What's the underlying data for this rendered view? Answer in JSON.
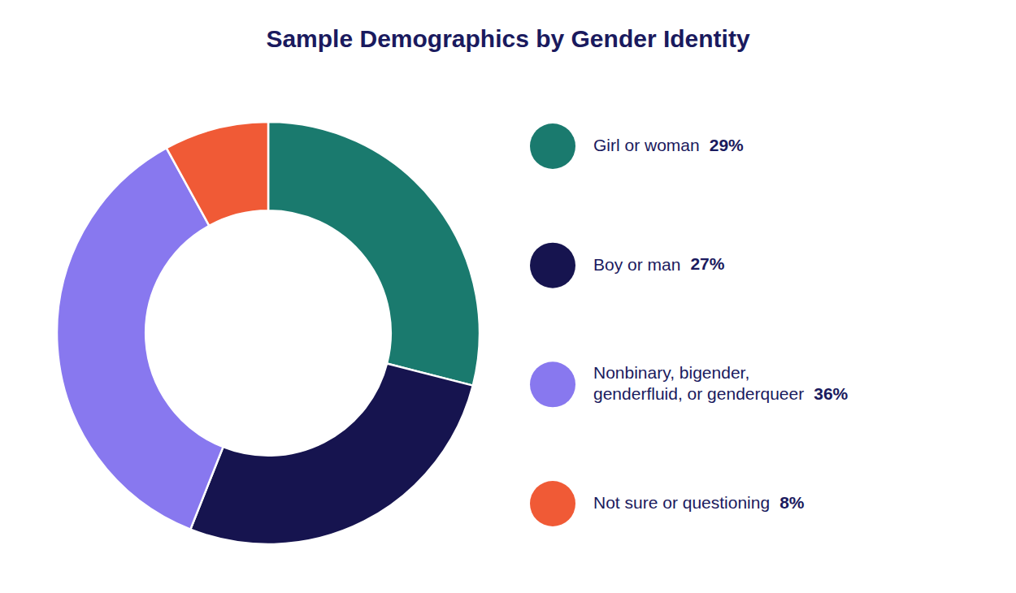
{
  "chart_data": {
    "type": "pie",
    "title": "Sample Demographics by Gender Identity",
    "categories": [
      "Girl or woman",
      "Boy or man",
      "Nonbinary, bigender,\ngenderfluid, or genderqueer",
      "Not sure or questioning"
    ],
    "values": [
      29,
      27,
      36,
      8
    ],
    "value_labels": [
      "29%",
      "27%",
      "36%",
      "8%"
    ],
    "colors": [
      "#1a7a6e",
      "#16144f",
      "#8878ef",
      "#f05a36"
    ],
    "legend": "right"
  }
}
